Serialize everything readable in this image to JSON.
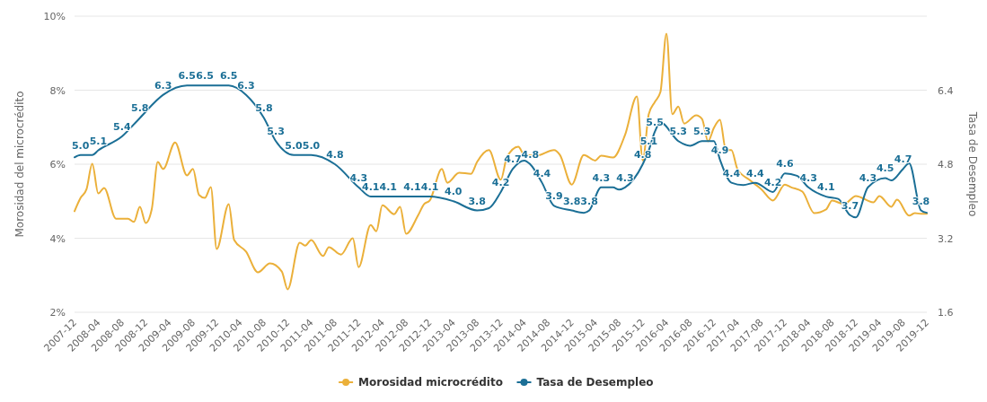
{
  "chart_data": {
    "type": "line",
    "ylabel": "Morosidad del microcrédito",
    "y2label": "Tasa de Desempleo",
    "xlim": [
      "2007-12",
      "2019-12"
    ],
    "xticks": [
      "2007-12",
      "2008-04",
      "2008-08",
      "2008-12",
      "2009-04",
      "2009-08",
      "2009-12",
      "2010-04",
      "2010-08",
      "2010-12",
      "2011-04",
      "2011-08",
      "2011-12",
      "2012-04",
      "2012-08",
      "2012-12",
      "2013-04",
      "2013-08",
      "2013-12",
      "2014-04",
      "2014-08",
      "2014-12",
      "2015-04",
      "2015-08",
      "2015-12",
      "2016-04",
      "2016-08",
      "2016-12",
      "2017-04",
      "2017-08",
      "2017-12",
      "2018-04",
      "2018-08",
      "2018-12",
      "2019-04",
      "2019-08",
      "2019-12"
    ],
    "ylim": [
      2,
      10
    ],
    "yticks": [
      {
        "value": 2,
        "label": "2%"
      },
      {
        "value": 4,
        "label": "4%"
      },
      {
        "value": 6,
        "label": "6%"
      },
      {
        "value": 8,
        "label": "8%"
      },
      {
        "value": 10,
        "label": "10%"
      }
    ],
    "y2lim": [
      1.6,
      8
    ],
    "y2ticks": [
      1.6,
      3.2,
      4.8,
      6.4
    ],
    "grid": "y",
    "legend": "bottom",
    "marker": "none",
    "line_style": "solid",
    "series": [
      {
        "name": "Morosidad microcrédito",
        "color": "#ebb03a",
        "x": [
          "2007-12",
          "2008-01",
          "2008-02",
          "2008-03",
          "2008-04",
          "2008-05",
          "2008-07",
          "2008-09",
          "2008-10",
          "2008-11",
          "2008-12",
          "2009-01",
          "2009-02",
          "2009-03",
          "2009-05",
          "2009-07",
          "2009-08",
          "2009-09",
          "2009-10",
          "2009-11",
          "2009-12",
          "2010-02",
          "2010-03",
          "2010-05",
          "2010-07",
          "2010-09",
          "2010-11",
          "2010-12",
          "2011-02",
          "2011-03",
          "2011-04",
          "2011-06",
          "2011-07",
          "2011-09",
          "2011-11",
          "2011-12",
          "2012-02",
          "2012-03",
          "2012-04",
          "2012-06",
          "2012-07",
          "2012-08",
          "2012-10",
          "2012-11",
          "2012-12",
          "2013-02",
          "2013-03",
          "2013-05",
          "2013-07",
          "2013-08",
          "2013-10",
          "2013-12",
          "2014-01",
          "2014-03",
          "2014-04",
          "2014-06",
          "2014-09",
          "2014-10",
          "2014-12",
          "2015-02",
          "2015-04",
          "2015-05",
          "2015-07",
          "2015-09",
          "2015-11",
          "2015-12",
          "2016-01",
          "2016-02",
          "2016-03",
          "2016-04",
          "2016-05",
          "2016-06",
          "2016-07",
          "2016-09",
          "2016-10",
          "2016-11",
          "2016-12",
          "2017-01",
          "2017-02",
          "2017-03",
          "2017-04",
          "2017-06",
          "2017-08",
          "2017-10",
          "2017-12",
          "2018-01",
          "2018-03",
          "2018-05",
          "2018-07",
          "2018-08",
          "2018-10",
          "2018-12",
          "2019-03",
          "2019-04",
          "2019-06",
          "2019-07",
          "2019-09",
          "2019-10",
          "2019-11",
          "2019-12"
        ],
        "values": [
          4.73,
          5.09,
          5.33,
          6.01,
          5.21,
          5.36,
          4.53,
          4.53,
          4.44,
          4.85,
          4.41,
          4.78,
          6.06,
          5.87,
          6.59,
          5.7,
          5.87,
          5.17,
          5.09,
          5.38,
          3.71,
          4.92,
          3.95,
          3.64,
          3.08,
          3.32,
          3.1,
          2.62,
          3.88,
          3.8,
          3.95,
          3.52,
          3.76,
          3.56,
          4.0,
          3.22,
          4.36,
          4.19,
          4.89,
          4.65,
          4.85,
          4.12,
          4.61,
          4.92,
          5.02,
          5.87,
          5.5,
          5.77,
          5.74,
          6.06,
          6.38,
          5.58,
          6.18,
          6.47,
          6.25,
          6.23,
          6.38,
          6.25,
          5.45,
          6.25,
          6.1,
          6.23,
          6.18,
          6.79,
          7.83,
          6.1,
          7.35,
          7.68,
          7.95,
          9.53,
          7.35,
          7.56,
          7.1,
          7.32,
          7.22,
          6.62,
          6.98,
          7.2,
          6.38,
          6.38,
          5.87,
          5.58,
          5.33,
          5.02,
          5.45,
          5.38,
          5.26,
          4.68,
          4.78,
          5.02,
          4.92,
          5.14,
          4.97,
          5.14,
          4.85,
          5.04,
          4.61,
          4.68,
          4.66,
          4.66
        ]
      },
      {
        "name": "Tasa de Desempleo",
        "color": "#1b6f96",
        "axis": "y2",
        "x": [
          "2007-12",
          "2008-01",
          "2008-03",
          "2008-04",
          "2008-08",
          "2008-11",
          "2009-03",
          "2009-07",
          "2009-10",
          "2010-02",
          "2010-05",
          "2010-08",
          "2010-10",
          "2011-01",
          "2011-04",
          "2011-08",
          "2011-12",
          "2012-02",
          "2012-05",
          "2012-09",
          "2012-12",
          "2013-04",
          "2013-08",
          "2013-10",
          "2013-12",
          "2014-02",
          "2014-04",
          "2014-05",
          "2014-07",
          "2014-09",
          "2014-12",
          "2015-02",
          "2015-03",
          "2015-05",
          "2015-07",
          "2015-08",
          "2015-09",
          "2015-12",
          "2016-01",
          "2016-02",
          "2016-03",
          "2016-06",
          "2016-08",
          "2016-10",
          "2016-12",
          "2017-01",
          "2017-03",
          "2017-05",
          "2017-07",
          "2017-10",
          "2017-12",
          "2018-02",
          "2018-04",
          "2018-07",
          "2018-09",
          "2018-11",
          "2018-12",
          "2019-02",
          "2019-05",
          "2019-06",
          "2019-08",
          "2019-09",
          "2019-11",
          "2019-12"
        ],
        "values": [
          4.95,
          5.0,
          5.0,
          5.1,
          5.4,
          5.8,
          6.3,
          6.5,
          6.5,
          6.5,
          6.3,
          5.8,
          5.3,
          5.0,
          5.0,
          4.8,
          4.3,
          4.1,
          4.1,
          4.1,
          4.1,
          4.0,
          3.8,
          3.85,
          4.2,
          4.7,
          4.88,
          4.8,
          4.4,
          3.9,
          3.8,
          3.75,
          3.8,
          4.3,
          4.3,
          4.25,
          4.3,
          4.8,
          5.1,
          5.5,
          5.7,
          5.3,
          5.2,
          5.3,
          5.3,
          4.9,
          4.4,
          4.35,
          4.4,
          4.2,
          4.6,
          4.55,
          4.3,
          4.1,
          4.05,
          3.7,
          3.65,
          4.3,
          4.5,
          4.45,
          4.7,
          4.82,
          3.8,
          3.75
        ],
        "value_labels": [
          null,
          "5.0",
          null,
          "5.1",
          "5.4",
          "5.8",
          "6.3",
          "6.5",
          "6.5",
          "6.5",
          "6.3",
          "5.8",
          "5.3",
          "5.0",
          "5.0",
          "4.8",
          "4.3",
          "4.1",
          "4.1",
          "4.1",
          "4.1",
          "4.0",
          "3.8",
          null,
          "4.2",
          "4.7",
          null,
          "4.8",
          "4.4",
          "3.9",
          "3.8",
          null,
          "3.8",
          "4.3",
          null,
          null,
          "4.3",
          "4.8",
          "5.1",
          "5.5",
          null,
          "5.3",
          null,
          "5.3",
          null,
          "4.9",
          "4.4",
          null,
          "4.4",
          "4.2",
          "4.6",
          null,
          "4.3",
          "4.1",
          null,
          "3.7",
          null,
          "4.3",
          "4.5",
          null,
          "4.7",
          null,
          "3.8",
          null
        ]
      }
    ]
  }
}
